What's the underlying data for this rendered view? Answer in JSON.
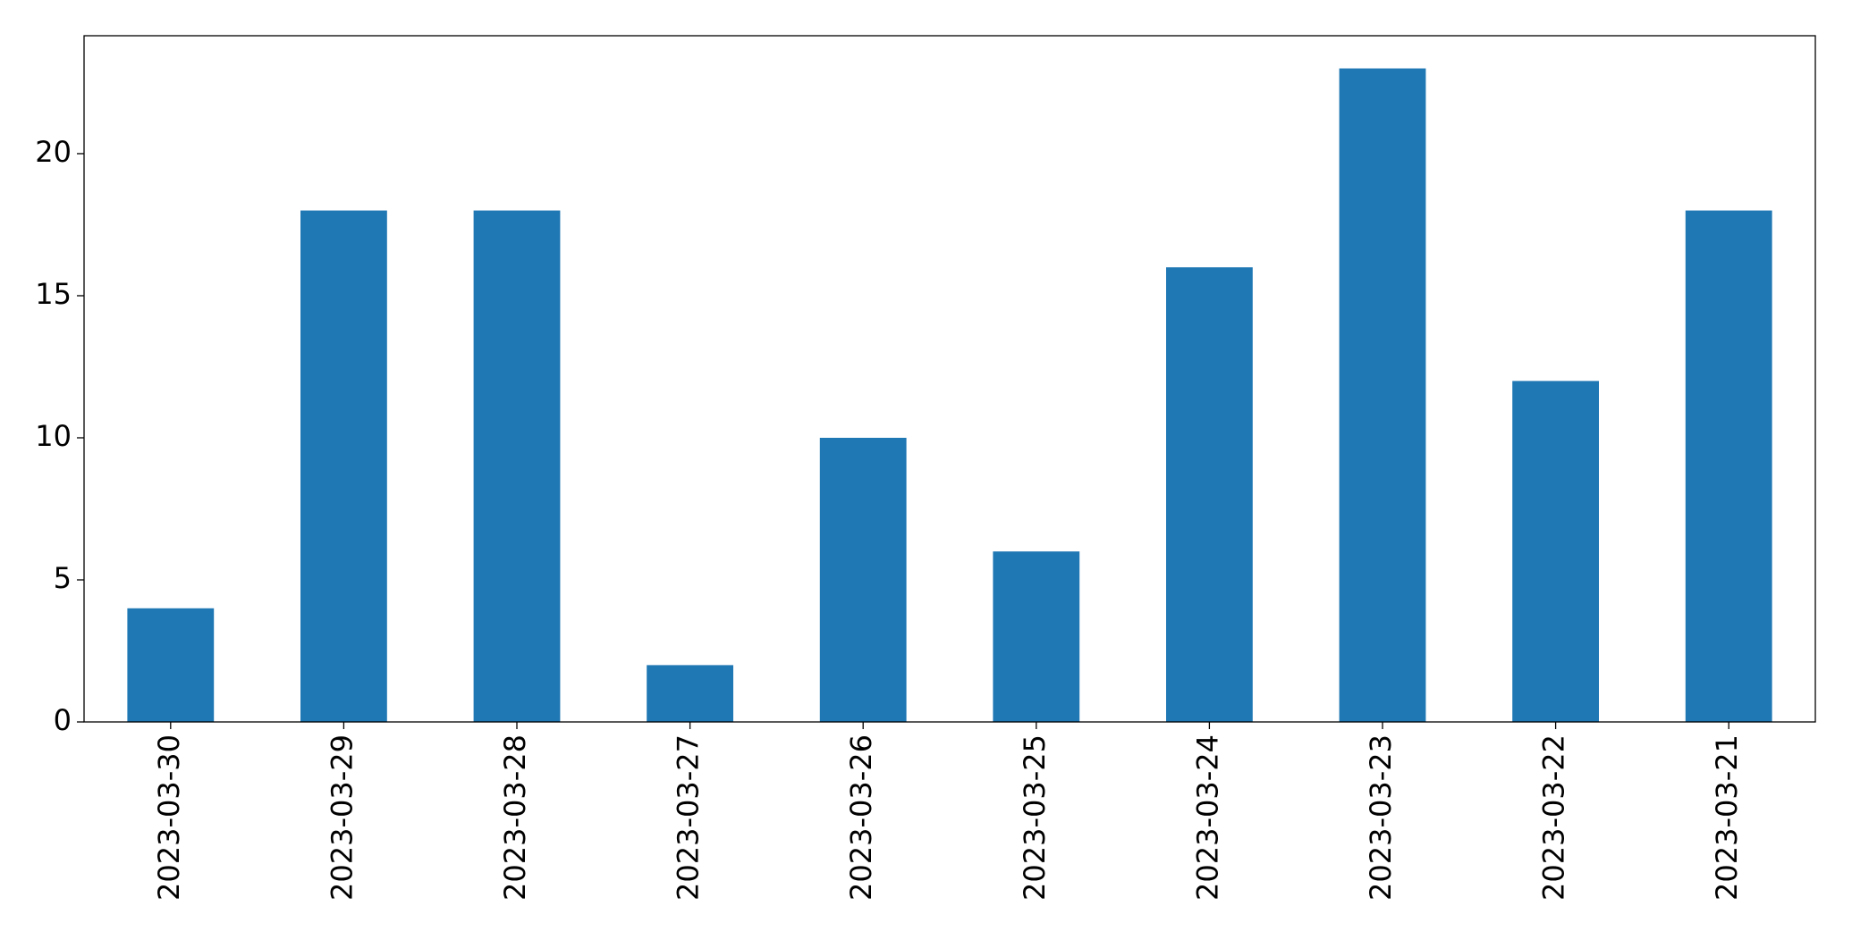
{
  "chart_data": {
    "type": "bar",
    "categories": [
      "2023-03-30",
      "2023-03-29",
      "2023-03-28",
      "2023-03-27",
      "2023-03-26",
      "2023-03-25",
      "2023-03-24",
      "2023-03-23",
      "2023-03-22",
      "2023-03-21"
    ],
    "values": [
      4,
      18,
      18,
      2,
      10,
      6,
      16,
      23,
      12,
      18
    ],
    "color": "#1f77b4",
    "ylim": [
      0,
      24.15
    ],
    "yticks": [
      0,
      5,
      10,
      15,
      20
    ],
    "grid": false
  }
}
